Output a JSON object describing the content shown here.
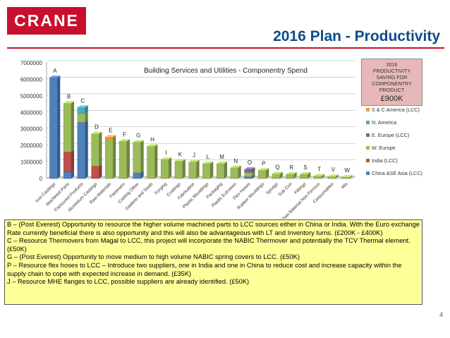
{
  "header": {
    "logo_text": "CRANE",
    "title": "2016 Plan - Productivity"
  },
  "colors": {
    "brand_red": "#c8102e",
    "title_blue": "#0d4c8b",
    "notes_bg": "#ffff99",
    "productivity_box": "#e6b9b8"
  },
  "productivity_box": {
    "label": "2016 PRODUCTIVITY SAVING FOR COMPONENTRY PRODUCT",
    "value": "£900K"
  },
  "chart_data": {
    "type": "bar",
    "stacked": true,
    "title": "Building Services and Utilities - Componentry Spend",
    "ylim": [
      0,
      7000000
    ],
    "yticks": [
      0,
      1000000,
      2000000,
      3000000,
      4000000,
      5000000,
      6000000,
      7000000
    ],
    "categories": [
      "Iron Castings",
      "Machined Parts",
      "Factoured Products",
      "Aluminium Castings",
      "Raw Materials",
      "Fasteners",
      "Casting Other",
      "Gaskets and Seals",
      "Forging",
      "Coatings",
      "Fabrication",
      "Plastic Mouldings",
      "Packaging",
      "Plastic Extrusion",
      "Flex Hoses",
      "Rubber Mouldings",
      "Springs",
      "Sub Con",
      "Fittings",
      "Raw Material Non Ferrous",
      "Consumables",
      "Mis"
    ],
    "bar_letters": [
      "A",
      "B",
      "C",
      "D",
      "E",
      "F",
      "G",
      "H",
      "I",
      "K",
      "J",
      "L",
      "M",
      "N",
      "O",
      "P",
      "Q",
      "R",
      "S",
      "T",
      "V",
      "W"
    ],
    "series": [
      {
        "name": "China &SE Asia (LCC)",
        "color": "#4f81bd",
        "values": [
          6100000,
          400000,
          3400000,
          0,
          0,
          0,
          350000,
          0,
          0,
          0,
          0,
          0,
          0,
          0,
          120000,
          0,
          0,
          0,
          0,
          0,
          0,
          0
        ]
      },
      {
        "name": "India (LCC)",
        "color": "#c0504d",
        "values": [
          0,
          1200000,
          0,
          750000,
          0,
          0,
          0,
          0,
          0,
          0,
          0,
          0,
          0,
          0,
          0,
          0,
          0,
          0,
          0,
          0,
          0,
          0
        ]
      },
      {
        "name": "W. Europe",
        "color": "#9bbb59",
        "values": [
          0,
          2950000,
          550000,
          1950000,
          2400000,
          2250000,
          1850000,
          1950000,
          1150000,
          1050000,
          1000000,
          900000,
          900000,
          650000,
          250000,
          500000,
          280000,
          260000,
          260000,
          150000,
          120000,
          80000
        ]
      },
      {
        "name": "E. Europe (LCC)",
        "color": "#8064a2",
        "values": [
          0,
          0,
          0,
          0,
          0,
          0,
          0,
          0,
          0,
          0,
          0,
          0,
          0,
          0,
          180000,
          0,
          0,
          0,
          0,
          0,
          0,
          0
        ]
      },
      {
        "name": "N. America",
        "color": "#4bacc6",
        "values": [
          0,
          0,
          350000,
          0,
          0,
          0,
          0,
          0,
          0,
          0,
          0,
          0,
          0,
          0,
          0,
          0,
          0,
          0,
          0,
          0,
          0,
          0
        ]
      },
      {
        "name": "S & C America (LCC)",
        "color": "#f79646",
        "values": [
          0,
          0,
          0,
          0,
          100000,
          0,
          0,
          0,
          0,
          0,
          0,
          0,
          0,
          0,
          0,
          0,
          0,
          0,
          0,
          0,
          0,
          0
        ]
      }
    ]
  },
  "notes": [
    "B – (Post Everest) Opportunity to resource the higher volume machined parts to LCC sources either in China or India. With the Euro exchange Rate currently beneficial there is also opportunity and this will also be advantageous with LT and Inventory turns. (£200K - £400K)",
    "C – Resource Thermovers from Magal to LCC, this project will incorporate the NABIC Thermover and potentially the TCV Thermal element. (£50K)",
    "G – (Post Everest) Opportunity to move medium to high volume NABIC spring covers to LCC. (£50K)",
    "P – Resource flex hoses to LCC – Introduce two suppliers, one in India and one in China to reduce cost and increase capacity within the supply chain to cope with expected increase in demand. (£35K)",
    "J – Resource MHE flanges to LCC, possible suppliers are already identified. (£50K)"
  ],
  "page_number": "4"
}
